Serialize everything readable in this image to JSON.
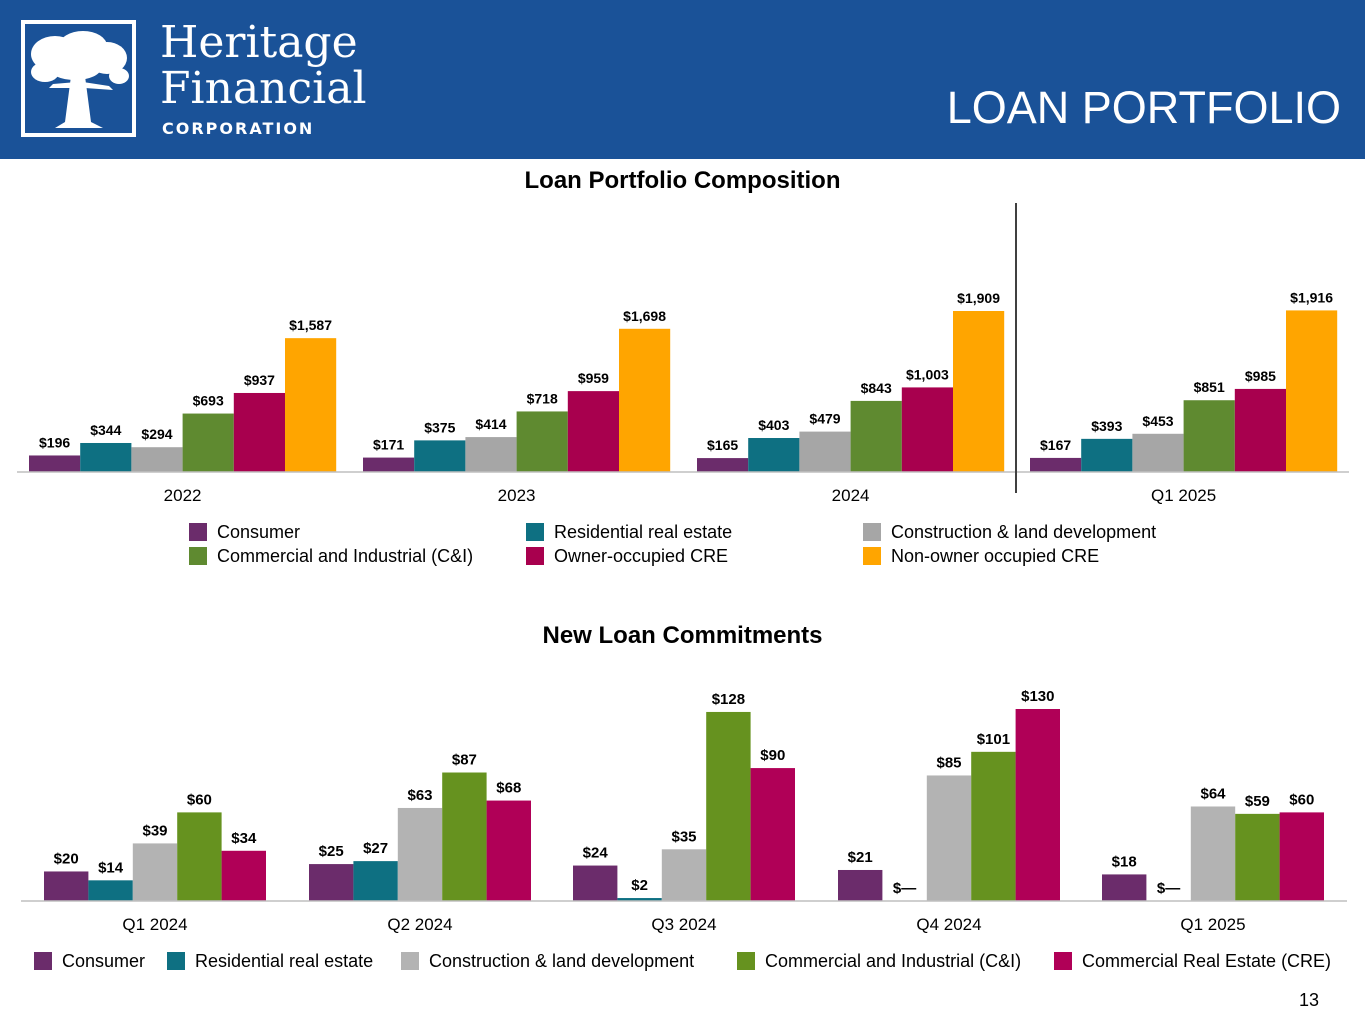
{
  "header": {
    "brand_line1": "Heritage",
    "brand_line2": "Financial",
    "brand_line3": "CORPORATION",
    "page_title": "LOAN PORTFOLIO",
    "logo_icon": "tree-logo-icon",
    "background_color": "#1a5298"
  },
  "page_number": "13",
  "colors": {
    "consumer": "#6b2c6b",
    "residential": "#0e7082",
    "construction": "#a6a6a6",
    "cni": "#5f8a30",
    "owner_cre": "#a8004e",
    "non_owner_cre": "#ffa500",
    "cni_new": "#66921f",
    "cre_new": "#b00057"
  },
  "chart_data": [
    {
      "type": "bar",
      "title": "Loan Portfolio Composition",
      "xlabel": "",
      "ylabel": "",
      "ylim": [
        0,
        2100
      ],
      "grid": false,
      "legend_position": "bottom",
      "categories": [
        "2022",
        "2023",
        "2024",
        "Q1 2025"
      ],
      "series": [
        {
          "name": "Consumer",
          "color": "#6b2c6b",
          "values": [
            196,
            171,
            165,
            167
          ],
          "labels": [
            "$196",
            "$171",
            "$165",
            "$167"
          ]
        },
        {
          "name": "Residential real estate",
          "color": "#0e7082",
          "values": [
            344,
            375,
            403,
            393
          ],
          "labels": [
            "$344",
            "$375",
            "$403",
            "$393"
          ]
        },
        {
          "name": "Construction & land development",
          "color": "#a6a6a6",
          "values": [
            294,
            414,
            479,
            453
          ],
          "labels": [
            "$294",
            "$414",
            "$479",
            "$453"
          ]
        },
        {
          "name": "Commercial and Industrial (C&I)",
          "color": "#5f8a30",
          "values": [
            693,
            718,
            843,
            851
          ],
          "labels": [
            "$693",
            "$718",
            "$843",
            "$851"
          ]
        },
        {
          "name": "Owner-occupied CRE",
          "color": "#a8004e",
          "values": [
            937,
            959,
            1003,
            985
          ],
          "labels": [
            "$937",
            "$959",
            "$1,003",
            "$985"
          ]
        },
        {
          "name": "Non-owner occupied CRE",
          "color": "#ffa500",
          "values": [
            1587,
            1698,
            1909,
            1916
          ],
          "labels": [
            "$1,587",
            "$1,698",
            "$1,909",
            "$1,916"
          ]
        }
      ],
      "legend": [
        [
          "Consumer",
          "Residential real estate",
          "Construction & land development"
        ],
        [
          "Commercial and Industrial (C&I)",
          "Owner-occupied CRE",
          "Non-owner occupied CRE"
        ]
      ]
    },
    {
      "type": "bar",
      "title": "New Loan Commitments",
      "xlabel": "",
      "ylabel": "",
      "ylim": [
        0,
        135
      ],
      "grid": false,
      "legend_position": "bottom",
      "categories": [
        "Q1 2024",
        "Q2 2024",
        "Q3 2024",
        "Q4 2024",
        "Q1 2025"
      ],
      "series": [
        {
          "name": "Consumer",
          "color": "#6b2c6b",
          "values": [
            20,
            25,
            24,
            21,
            18
          ],
          "labels": [
            "$20",
            "$25",
            "$24",
            "$21",
            "$18"
          ]
        },
        {
          "name": "Residential real estate",
          "color": "#0e7082",
          "values": [
            14,
            27,
            2,
            0,
            0
          ],
          "labels": [
            "$14",
            "$27",
            "$2",
            "$—",
            "$—"
          ]
        },
        {
          "name": "Construction & land development",
          "color": "#b3b3b3",
          "values": [
            39,
            63,
            35,
            85,
            64
          ],
          "labels": [
            "$39",
            "$63",
            "$35",
            "$85",
            "$64"
          ]
        },
        {
          "name": "Commercial and Industrial (C&I)",
          "color": "#66921f",
          "values": [
            60,
            87,
            128,
            101,
            59
          ],
          "labels": [
            "$60",
            "$87",
            "$128",
            "$101",
            "$59"
          ]
        },
        {
          "name": "Commercial Real Estate (CRE)",
          "color": "#b00057",
          "values": [
            34,
            68,
            90,
            130,
            60
          ],
          "labels": [
            "$34",
            "$68",
            "$90",
            "$130",
            "$60"
          ]
        }
      ],
      "legend": [
        [
          "Consumer",
          "Residential real estate",
          "Construction & land development",
          "Commercial and Industrial (C&I)",
          "Commercial Real Estate (CRE)"
        ]
      ]
    }
  ]
}
